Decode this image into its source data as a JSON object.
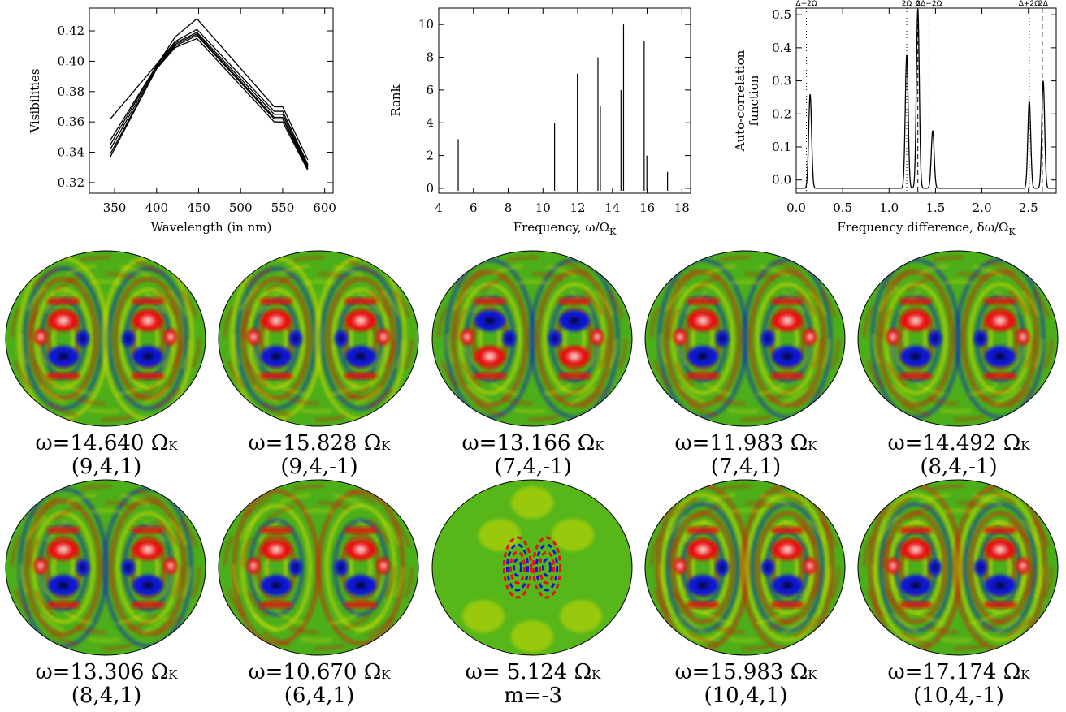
{
  "chart_data": [
    {
      "type": "line",
      "xlabel": "Wavelength (in nm)",
      "ylabel": "Visibilities",
      "xlim": [
        320,
        610
      ],
      "ylim": [
        0.313,
        0.435
      ],
      "xticks": [
        "350",
        "400",
        "450",
        "500",
        "550",
        "600"
      ],
      "yticks": [
        "0.32",
        "0.34",
        "0.36",
        "0.38",
        "0.40",
        "0.42"
      ],
      "x": [
        345,
        400,
        422,
        448,
        540,
        550,
        580
      ],
      "series": [
        {
          "values": [
            0.348,
            0.397,
            0.416,
            0.428,
            0.37,
            0.37,
            0.335
          ]
        },
        {
          "values": [
            0.362,
            0.398,
            0.413,
            0.421,
            0.367,
            0.367,
            0.332
          ]
        },
        {
          "values": [
            0.345,
            0.397,
            0.412,
            0.419,
            0.365,
            0.365,
            0.331
          ]
        },
        {
          "values": [
            0.342,
            0.396,
            0.411,
            0.418,
            0.363,
            0.363,
            0.33
          ]
        },
        {
          "values": [
            0.339,
            0.395,
            0.41,
            0.417,
            0.362,
            0.362,
            0.329
          ]
        },
        {
          "values": [
            0.337,
            0.395,
            0.409,
            0.415,
            0.36,
            0.36,
            0.328
          ]
        }
      ]
    },
    {
      "type": "bar",
      "xlabel": "Frequency, ω/Ω",
      "xlabel_sub": "K",
      "ylabel": "Rank",
      "xlim": [
        4,
        18.5
      ],
      "ylim": [
        -0.3,
        11
      ],
      "xticks": [
        "4",
        "6",
        "8",
        "10",
        "12",
        "14",
        "16",
        "18"
      ],
      "yticks": [
        "0",
        "2",
        "4",
        "6",
        "8",
        "10"
      ],
      "x": [
        5.124,
        10.67,
        11.983,
        13.166,
        13.306,
        14.492,
        14.64,
        15.828,
        15.983,
        17.174
      ],
      "values": [
        3,
        4,
        7,
        8,
        5,
        6,
        10,
        9,
        2,
        1
      ]
    },
    {
      "type": "line",
      "xlabel": "Frequency difference, δω/Ω",
      "xlabel_sub": "K",
      "ylabel": "Auto-correlation function",
      "xlim": [
        0,
        2.8
      ],
      "ylim": [
        -0.04,
        0.52
      ],
      "xticks": [
        "0.0",
        "0.5",
        "1.0",
        "1.5",
        "2.0",
        "2.5"
      ],
      "yticks": [
        "0.0",
        "0.1",
        "0.2",
        "0.3",
        "0.4",
        "0.5"
      ],
      "peaks": [
        {
          "x": 0.15,
          "y": 0.26
        },
        {
          "x": 1.19,
          "y": 0.38
        },
        {
          "x": 1.31,
          "y": 0.52
        },
        {
          "x": 1.47,
          "y": 0.15
        },
        {
          "x": 2.51,
          "y": 0.24
        },
        {
          "x": 2.66,
          "y": 0.3
        }
      ],
      "baseline": -0.025,
      "dotted_lines": [
        0.11,
        1.19,
        1.43,
        2.51
      ],
      "dashed_lines": [
        1.31,
        2.65
      ],
      "marker_labels": [
        {
          "x": 0.11,
          "text": "Δ−2Ω"
        },
        {
          "x": 1.19,
          "text": "2Ω"
        },
        {
          "x": 1.31,
          "text": "Δ"
        },
        {
          "x": 1.43,
          "text": "2Δ−2Ω"
        },
        {
          "x": 2.51,
          "text": "Δ+2Ω"
        },
        {
          "x": 2.66,
          "text": "2Δ"
        }
      ]
    }
  ],
  "mode_panels": [
    {
      "freq_text": "ω=14.640 Ω",
      "sub": "K",
      "label": "(9,4,1)",
      "k": 9,
      "rev": false
    },
    {
      "freq_text": "ω=15.828 Ω",
      "sub": "K",
      "label": "(9,4,-1)",
      "k": 9,
      "rev": false
    },
    {
      "freq_text": "ω=13.166 Ω",
      "sub": "K",
      "label": "(7,4,-1)",
      "k": 7,
      "rev": true
    },
    {
      "freq_text": "ω=11.983 Ω",
      "sub": "K",
      "label": "(7,4,1)",
      "k": 7,
      "rev": false
    },
    {
      "freq_text": "ω=14.492 Ω",
      "sub": "K",
      "label": "(8,4,-1)",
      "k": 8,
      "rev": false
    },
    {
      "freq_text": "ω=13.306 Ω",
      "sub": "K",
      "label": "(8,4,1)",
      "k": 8,
      "rev": false
    },
    {
      "freq_text": "ω=10.670 Ω",
      "sub": "K",
      "label": "(6,4,1)",
      "k": 6,
      "rev": false
    },
    {
      "freq_text": "ω= 5.124 Ω",
      "sub": "K",
      "label": "m=-3",
      "k": 0,
      "rev": false
    },
    {
      "freq_text": "ω=15.983 Ω",
      "sub": "K",
      "label": "(10,4,1)",
      "k": 10,
      "rev": false
    },
    {
      "freq_text": "ω=17.174 Ω",
      "sub": "K",
      "label": "(10,4,-1)",
      "k": 10,
      "rev": false
    }
  ],
  "colors": {
    "background": "#ffffff",
    "ink": "#000000",
    "disk_green": "#4caf1a",
    "yellow": "#e8e000",
    "red": "#e8100c",
    "blue": "#1018d8",
    "white": "#ffffff",
    "black": "#000000"
  }
}
